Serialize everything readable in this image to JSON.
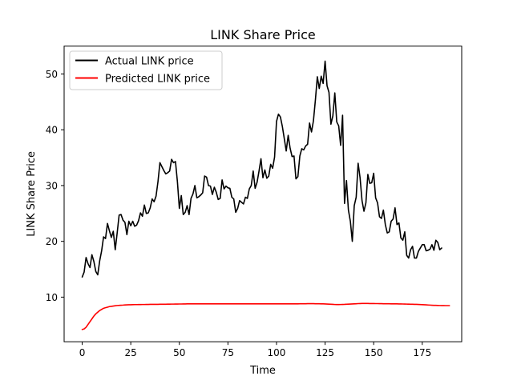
{
  "chart_data": {
    "type": "line",
    "title": "LINK Share Price",
    "xlabel": "Time",
    "ylabel": "LINK Share Price",
    "xlim": [
      -9.3,
      195.3
    ],
    "ylim": [
      2.0,
      55.0
    ],
    "x_ticks": [
      0,
      25,
      50,
      75,
      100,
      125,
      150,
      175
    ],
    "y_ticks": [
      10,
      20,
      30,
      40,
      50
    ],
    "grid": false,
    "legend_position": "upper left",
    "series": [
      {
        "name": "Actual LINK price",
        "color": "#000000",
        "x_start": 0,
        "values": [
          13.6,
          14.5,
          17.1,
          16.0,
          15.3,
          17.6,
          16.4,
          14.6,
          14.0,
          16.5,
          18.3,
          20.8,
          20.5,
          23.2,
          21.9,
          20.7,
          21.8,
          18.5,
          21.5,
          24.7,
          24.8,
          23.8,
          23.4,
          21.2,
          23.6,
          22.8,
          23.6,
          22.7,
          22.9,
          23.7,
          25.1,
          24.5,
          26.5,
          25.0,
          25.1,
          26.0,
          27.6,
          27.1,
          28.1,
          30.7,
          34.1,
          33.4,
          32.7,
          32.1,
          32.3,
          32.6,
          34.7,
          34.1,
          34.3,
          30.7,
          25.9,
          28.2,
          24.8,
          25.2,
          26.4,
          24.8,
          27.7,
          28.5,
          30.0,
          27.8,
          28.0,
          28.3,
          28.7,
          31.7,
          31.5,
          30.0,
          29.9,
          28.4,
          29.7,
          28.8,
          27.5,
          27.7,
          31.0,
          29.4,
          29.9,
          29.6,
          29.5,
          27.9,
          27.6,
          25.2,
          25.9,
          27.3,
          27.0,
          26.7,
          27.9,
          27.7,
          29.4,
          30.0,
          32.6,
          29.5,
          30.6,
          32.6,
          34.8,
          31.4,
          32.8,
          31.3,
          31.7,
          33.8,
          33.1,
          35.1,
          41.5,
          42.8,
          42.3,
          40.6,
          38.4,
          36.2,
          39.0,
          36.7,
          35.2,
          35.3,
          31.2,
          31.6,
          35.3,
          36.6,
          36.4,
          37.1,
          37.4,
          41.2,
          39.6,
          41.6,
          45.3,
          49.5,
          47.4,
          49.6,
          48.3,
          52.3,
          47.9,
          46.7,
          41.0,
          42.5,
          46.6,
          41.4,
          40.7,
          37.2,
          42.6,
          26.8,
          30.9,
          25.6,
          23.6,
          20.0,
          26.4,
          27.9,
          34.0,
          31.4,
          27.3,
          25.4,
          26.9,
          32.0,
          30.4,
          30.5,
          32.2,
          27.8,
          26.9,
          24.4,
          24.1,
          25.6,
          23.0,
          21.5,
          21.7,
          23.6,
          24.0,
          26.0,
          23.0,
          23.3,
          20.6,
          20.2,
          21.7,
          17.5,
          17.0,
          18.5,
          19.1,
          17.0,
          17.0,
          18.2,
          18.8,
          19.4,
          19.4,
          18.3,
          18.4,
          18.6,
          19.4,
          18.4,
          20.2,
          19.8,
          18.5,
          18.8
        ]
      },
      {
        "name": "Predicted LINK price",
        "color": "#ff0000",
        "x_start": 0,
        "values": [
          4.2,
          4.3,
          4.6,
          5.1,
          5.6,
          6.1,
          6.6,
          7.0,
          7.3,
          7.6,
          7.8,
          8.0,
          8.1,
          8.2,
          8.3,
          8.35,
          8.4,
          8.45,
          8.5,
          8.52,
          8.55,
          8.57,
          8.6,
          8.62,
          8.63,
          8.64,
          8.65,
          8.66,
          8.66,
          8.67,
          8.67,
          8.68,
          8.68,
          8.69,
          8.69,
          8.7,
          8.7,
          8.7,
          8.71,
          8.71,
          8.72,
          8.72,
          8.73,
          8.73,
          8.74,
          8.74,
          8.75,
          8.75,
          8.76,
          8.76,
          8.77,
          8.77,
          8.78,
          8.78,
          8.79,
          8.79,
          8.8,
          8.8,
          8.8,
          8.8,
          8.8,
          8.8,
          8.8,
          8.8,
          8.79,
          8.79,
          8.79,
          8.79,
          8.79,
          8.79,
          8.79,
          8.79,
          8.79,
          8.8,
          8.8,
          8.8,
          8.8,
          8.8,
          8.8,
          8.8,
          8.8,
          8.8,
          8.8,
          8.8,
          8.8,
          8.8,
          8.8,
          8.8,
          8.79,
          8.79,
          8.79,
          8.79,
          8.79,
          8.79,
          8.79,
          8.79,
          8.79,
          8.79,
          8.79,
          8.8,
          8.8,
          8.8,
          8.8,
          8.8,
          8.8,
          8.79,
          8.79,
          8.79,
          8.79,
          8.79,
          8.8,
          8.8,
          8.81,
          8.81,
          8.82,
          8.82,
          8.83,
          8.83,
          8.83,
          8.83,
          8.82,
          8.82,
          8.81,
          8.8,
          8.79,
          8.78,
          8.76,
          8.74,
          8.72,
          8.7,
          8.68,
          8.67,
          8.67,
          8.68,
          8.69,
          8.7,
          8.72,
          8.74,
          8.76,
          8.78,
          8.8,
          8.82,
          8.84,
          8.85,
          8.86,
          8.86,
          8.86,
          8.86,
          8.85,
          8.85,
          8.85,
          8.84,
          8.84,
          8.83,
          8.83,
          8.82,
          8.82,
          8.81,
          8.81,
          8.8,
          8.8,
          8.79,
          8.79,
          8.78,
          8.78,
          8.77,
          8.76,
          8.75,
          8.74,
          8.73,
          8.72,
          8.71,
          8.7,
          8.69,
          8.67,
          8.65,
          8.63,
          8.61,
          8.59,
          8.57,
          8.55,
          8.53,
          8.52,
          8.51,
          8.5,
          8.49,
          8.49,
          8.48,
          8.48,
          8.48
        ]
      }
    ]
  }
}
